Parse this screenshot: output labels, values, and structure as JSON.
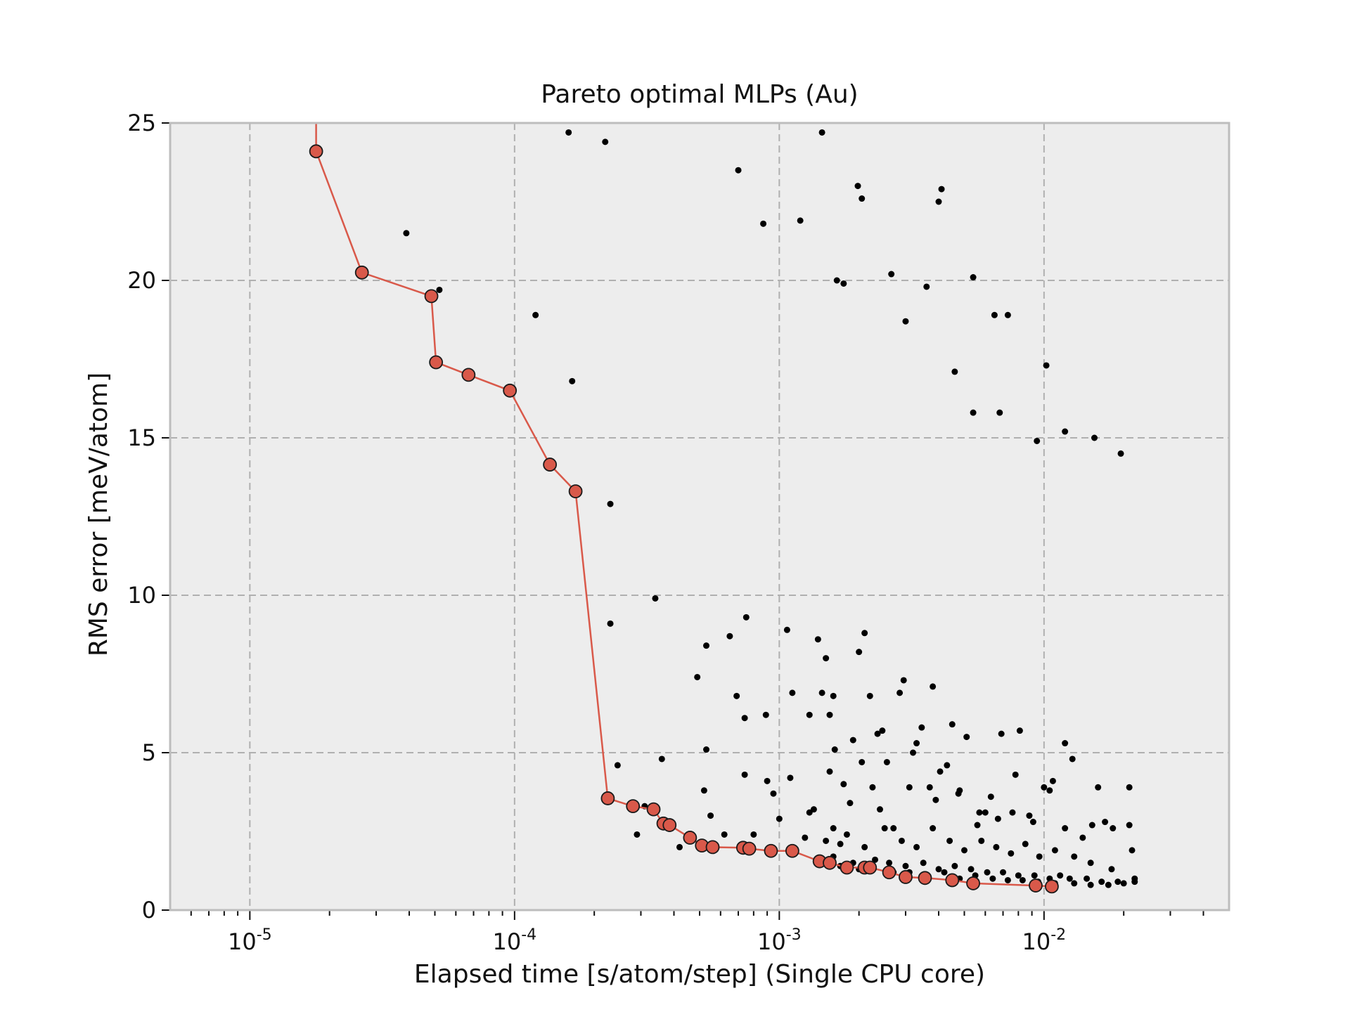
{
  "chart_data": {
    "type": "scatter",
    "title": "Pareto optimal MLPs (Au)",
    "xlabel": "Elapsed time [s/atom/step] (Single CPU core)",
    "ylabel": "RMS error [meV/atom]",
    "xscale": "log",
    "xlim": [
      5e-06,
      0.05
    ],
    "ylim": [
      0,
      25
    ],
    "xticks": [
      {
        "value": 1e-05,
        "base": "10",
        "exp": "-5"
      },
      {
        "value": 0.0001,
        "base": "10",
        "exp": "-4"
      },
      {
        "value": 0.001,
        "base": "10",
        "exp": "-3"
      },
      {
        "value": 0.01,
        "base": "10",
        "exp": "-2"
      }
    ],
    "yticks": [
      0,
      5,
      10,
      15,
      20,
      25
    ],
    "grid": true,
    "colors": {
      "background": "#ededed",
      "grid": "#b0b0b0",
      "pareto_line": "#d9594a",
      "pareto_marker": "#d9594a",
      "points": "#000000",
      "spine": "#bdbdbd"
    },
    "series": [
      {
        "kind": "points",
        "x": [
          3.9e-05,
          5.2e-05,
          0.00012,
          0.00016,
          0.000165,
          0.00022,
          0.00023,
          0.00023,
          0.000245,
          0.00034,
          0.00036,
          0.00049,
          0.00052,
          0.00053,
          0.00053,
          0.00055,
          0.00065,
          0.00069,
          0.0007,
          0.00074,
          0.00074,
          0.00075,
          0.00087,
          0.00089,
          0.00095,
          0.00107,
          0.00112,
          0.0012,
          0.0013,
          0.0014,
          0.00145,
          0.0015,
          0.00155,
          0.0016,
          0.00165,
          0.00175,
          0.0019,
          0.00198,
          0.002,
          0.00205,
          0.0021,
          0.0022,
          0.00255,
          0.00265,
          0.00295,
          0.003,
          0.0036,
          0.004,
          0.0041,
          0.0046,
          0.0054,
          0.0054,
          0.0065,
          0.0068,
          0.0073,
          0.0094,
          0.0102,
          0.012,
          0.0155,
          0.0195,
          0.00029,
          0.00031,
          0.00042,
          0.00062,
          0.0008,
          0.001,
          0.00125,
          0.00135,
          0.0016,
          0.0017,
          0.00185,
          0.00205,
          0.00225,
          0.0024,
          0.0027,
          0.0031,
          0.0033,
          0.0037,
          0.0039,
          0.0043,
          0.0048,
          0.0057,
          0.0063,
          0.0076,
          0.0088,
          0.0105,
          0.012,
          0.014,
          0.017,
          0.021,
          0.0015,
          0.0018,
          0.0021,
          0.0025,
          0.0029,
          0.0033,
          0.0038,
          0.0044,
          0.005,
          0.0058,
          0.0066,
          0.0075,
          0.0085,
          0.0096,
          0.011,
          0.013,
          0.015,
          0.018,
          0.022,
          0.0115,
          0.0016,
          0.0019,
          0.0022,
          0.0026,
          0.003,
          0.0035,
          0.004,
          0.0046,
          0.0053,
          0.0061,
          0.007,
          0.008,
          0.0092,
          0.0105,
          0.0125,
          0.0145,
          0.0165,
          0.019,
          0.022,
          0.0017,
          0.002,
          0.0023,
          0.0027,
          0.0031,
          0.0036,
          0.0042,
          0.0048,
          0.0055,
          0.0064,
          0.0073,
          0.0083,
          0.0095,
          0.011,
          0.013,
          0.015,
          0.0175,
          0.02,
          0.00145,
          0.00235,
          0.0032,
          0.0045,
          0.006,
          0.0081,
          0.012,
          0.016,
          0.021,
          0.01,
          0.0038,
          0.0051,
          0.0069,
          0.0009,
          0.0011,
          0.0013,
          0.00155,
          0.00175,
          0.00245,
          0.00285,
          0.00345,
          0.00405,
          0.00475,
          0.0056,
          0.0067,
          0.0078,
          0.0091,
          0.0108,
          0.0128,
          0.0152,
          0.0182,
          0.0215,
          0.00162
        ],
        "y": [
          21.5,
          19.7,
          18.9,
          24.7,
          16.8,
          24.4,
          12.9,
          9.1,
          4.6,
          9.9,
          4.8,
          7.4,
          3.8,
          5.1,
          8.4,
          3.0,
          8.7,
          6.8,
          23.5,
          6.1,
          4.3,
          9.3,
          21.8,
          6.2,
          3.7,
          8.9,
          6.9,
          21.9,
          6.2,
          8.6,
          24.7,
          8.0,
          6.2,
          6.8,
          20.0,
          19.9,
          5.4,
          23.0,
          8.2,
          22.6,
          8.8,
          6.8,
          4.7,
          20.2,
          7.3,
          18.7,
          19.8,
          22.5,
          22.9,
          17.1,
          15.8,
          20.1,
          18.9,
          15.8,
          18.9,
          14.9,
          17.3,
          15.2,
          15.0,
          14.5,
          2.4,
          3.3,
          2.0,
          2.4,
          2.4,
          2.9,
          2.3,
          3.2,
          2.6,
          2.1,
          3.4,
          4.7,
          3.9,
          3.2,
          2.6,
          3.9,
          5.3,
          3.9,
          3.5,
          4.6,
          3.8,
          3.1,
          3.6,
          3.1,
          3.0,
          3.8,
          2.6,
          2.3,
          2.8,
          2.7,
          2.2,
          2.4,
          2.0,
          2.6,
          2.2,
          2.0,
          2.6,
          2.2,
          1.9,
          2.2,
          2.0,
          1.8,
          2.1,
          1.7,
          1.9,
          1.7,
          1.5,
          1.3,
          1.0,
          1.1,
          1.7,
          1.5,
          1.4,
          1.5,
          1.4,
          1.5,
          1.3,
          1.4,
          1.3,
          1.2,
          1.2,
          1.1,
          1.1,
          1.0,
          1.0,
          1.0,
          0.9,
          0.9,
          0.9,
          1.4,
          1.3,
          1.6,
          1.2,
          1.2,
          1.1,
          1.2,
          1.0,
          1.1,
          1.0,
          0.95,
          0.95,
          0.9,
          0.85,
          0.85,
          0.8,
          0.8,
          0.85,
          6.9,
          5.6,
          5.0,
          5.9,
          3.1,
          5.7,
          5.3,
          3.9,
          3.9,
          3.9,
          7.1,
          5.5,
          5.6,
          4.1,
          4.2,
          3.1,
          4.4,
          4.0,
          5.7,
          6.9,
          5.8,
          4.4,
          3.7,
          2.7,
          2.9,
          4.3,
          2.8,
          4.1,
          4.8,
          2.7,
          2.6,
          1.9,
          5.1
        ]
      },
      {
        "kind": "pareto",
        "x": [
          1.78e-05,
          1.78e-05,
          2.65e-05,
          4.85e-05,
          5.05e-05,
          6.7e-05,
          9.6e-05,
          0.000136,
          0.00017,
          0.000225,
          0.00028,
          0.000335,
          0.000365,
          0.000385,
          0.00046,
          0.00051,
          0.00056,
          0.00073,
          0.00077,
          0.00093,
          0.00112,
          0.00142,
          0.00155,
          0.0018,
          0.0021,
          0.0022,
          0.0026,
          0.003,
          0.00355,
          0.0045,
          0.0054,
          0.0093,
          0.0107
        ],
        "y": [
          25.0,
          24.1,
          20.25,
          19.5,
          17.4,
          17.0,
          16.5,
          14.15,
          13.3,
          3.55,
          3.3,
          3.2,
          2.75,
          2.7,
          2.3,
          2.05,
          2.0,
          1.98,
          1.95,
          1.88,
          1.88,
          1.55,
          1.5,
          1.35,
          1.35,
          1.35,
          1.2,
          1.05,
          1.02,
          0.95,
          0.85,
          0.78,
          0.75
        ],
        "markers_from_index": 1
      }
    ]
  }
}
